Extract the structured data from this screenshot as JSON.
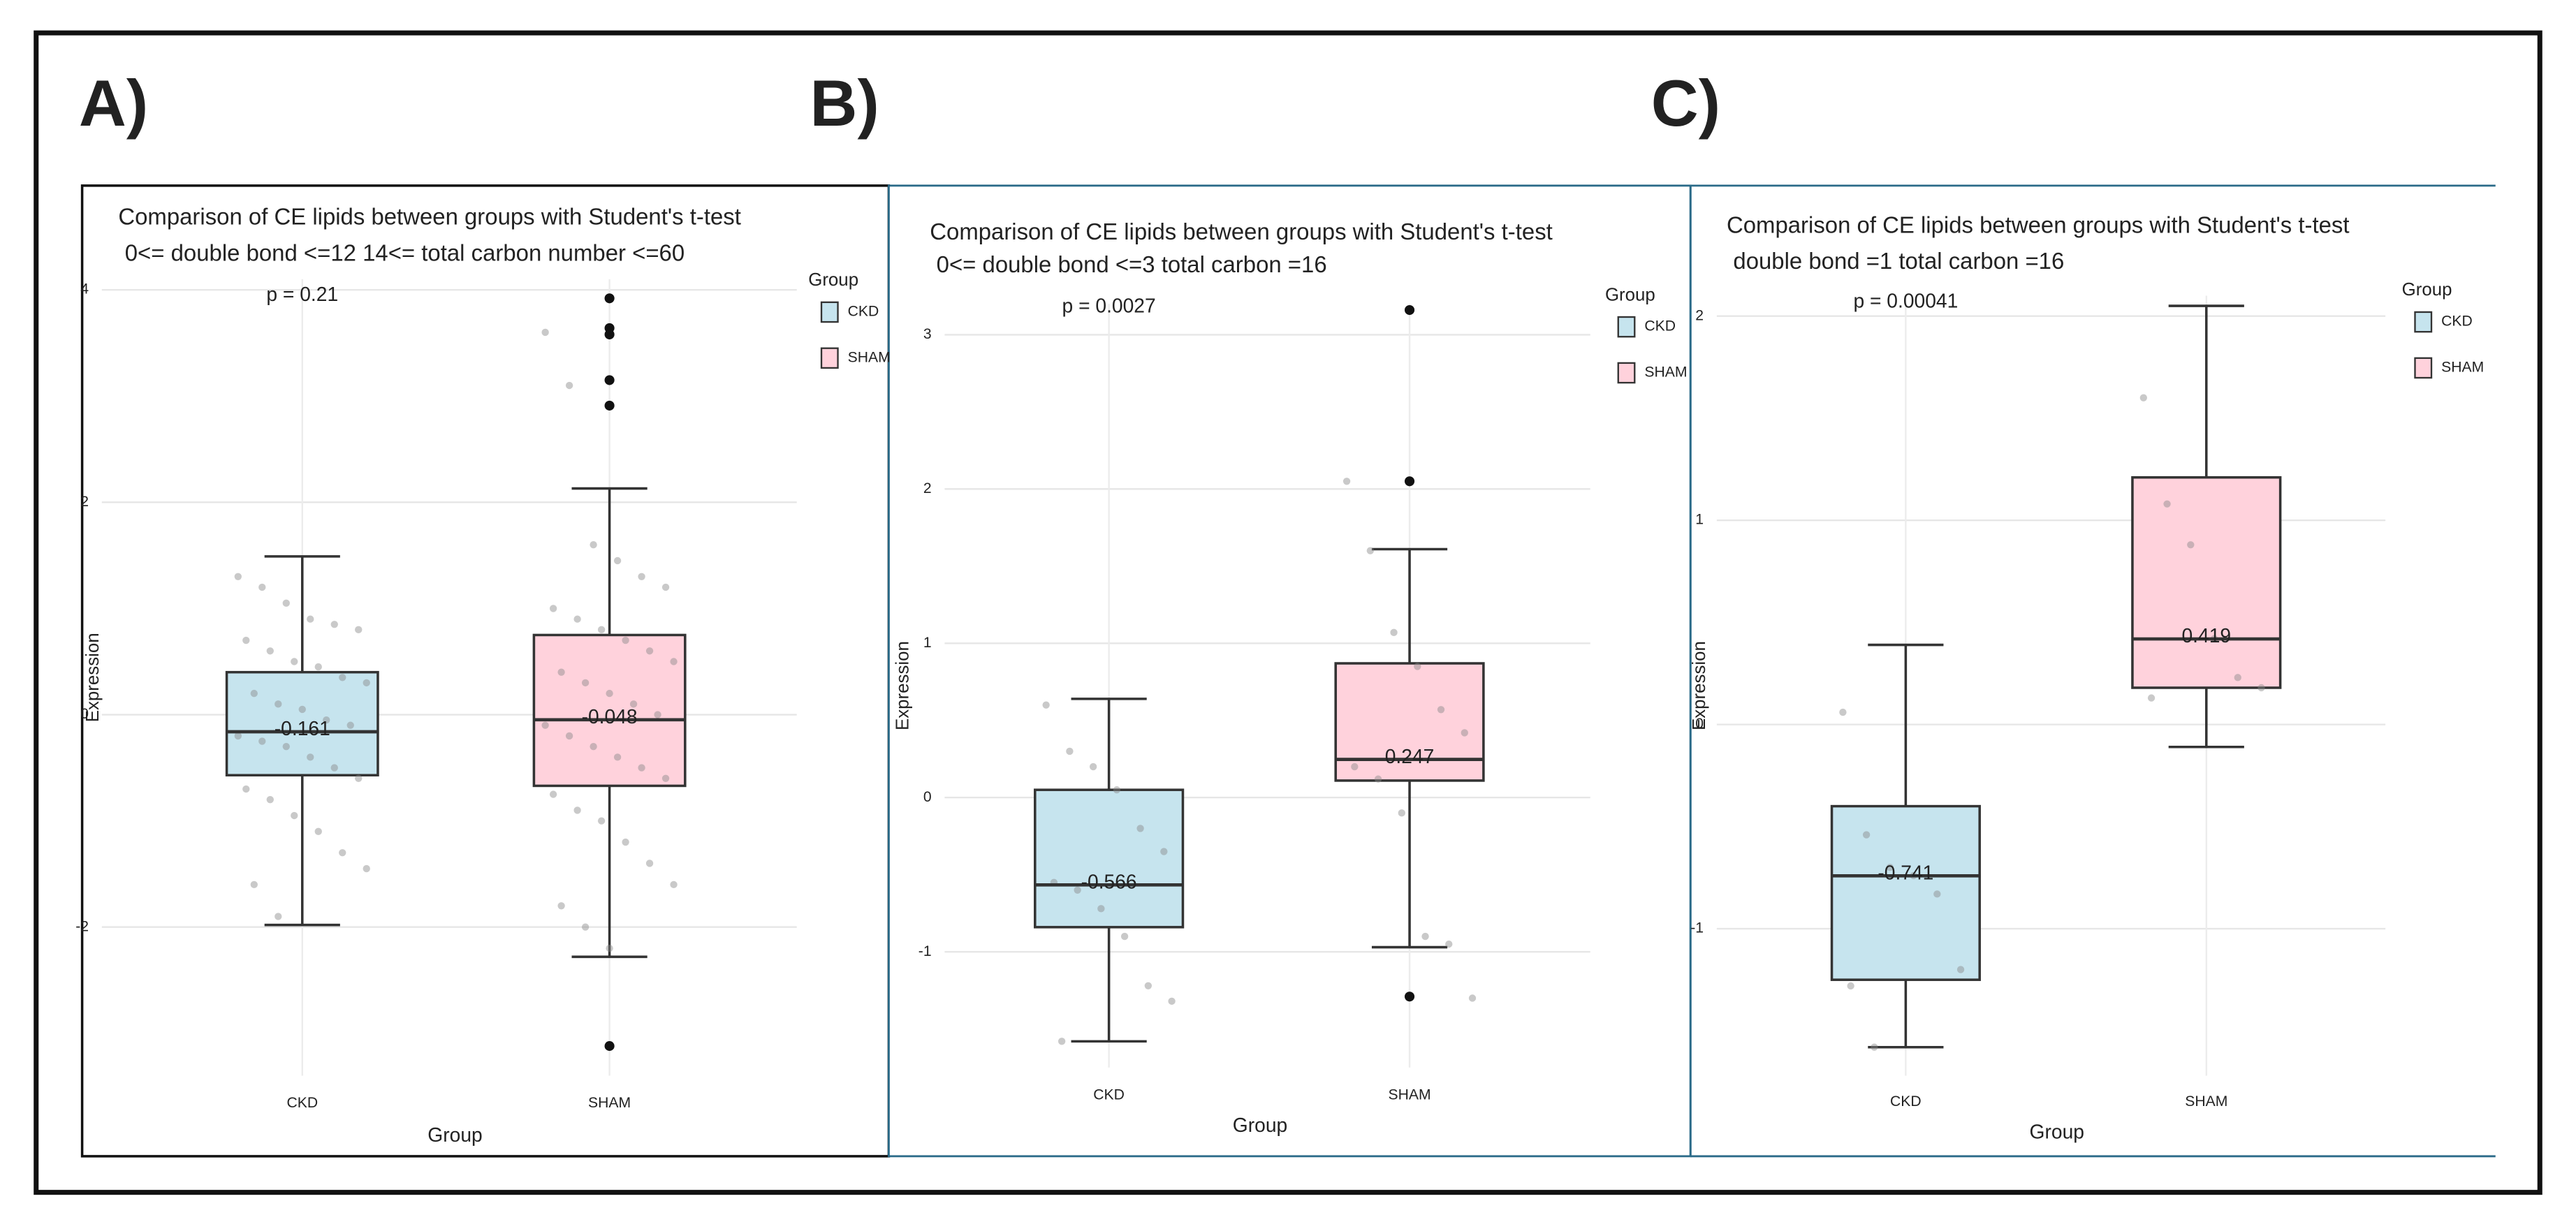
{
  "chart_data": [
    {
      "type": "box",
      "panel_label": "A)",
      "title": "Comparison of CE lipids between groups with Student's t-test",
      "subtitle": "0<= double bond <=12 14<= total carbon number <=60",
      "annotation": "p = 0.21",
      "xlabel": "Group",
      "ylabel": "Expression",
      "legend_title": "Group",
      "categories": [
        "CKD",
        "SHAM"
      ],
      "ylim": [
        -3.4,
        4.1
      ],
      "yticks": [
        -2,
        0,
        2,
        4
      ],
      "grid": true,
      "series": [
        {
          "name": "CKD",
          "color": "#c6e4ee",
          "whisker_low": -1.98,
          "q1": -0.57,
          "median": -0.161,
          "q3": 0.4,
          "whisker_high": 1.49,
          "outliers": [],
          "points": [
            1.3,
            1.2,
            1.05,
            0.9,
            0.85,
            0.8,
            0.7,
            0.6,
            0.5,
            0.45,
            0.35,
            0.3,
            0.2,
            0.1,
            0.05,
            -0.05,
            -0.1,
            -0.2,
            -0.25,
            -0.3,
            -0.4,
            -0.5,
            -0.6,
            -0.7,
            -0.8,
            -0.95,
            -1.1,
            -1.3,
            -1.45,
            -1.6,
            -1.9
          ]
        },
        {
          "name": "SHAM",
          "color": "#ffd2dc",
          "whisker_low": -2.28,
          "q1": -0.67,
          "median": -0.048,
          "q3": 0.75,
          "whisker_high": 2.13,
          "outliers": [
            3.92,
            3.64,
            3.58,
            3.15,
            2.91,
            -3.12
          ],
          "points": [
            3.6,
            3.1,
            1.6,
            1.45,
            1.3,
            1.2,
            1.0,
            0.9,
            0.8,
            0.7,
            0.6,
            0.5,
            0.4,
            0.3,
            0.2,
            0.1,
            0.0,
            -0.1,
            -0.2,
            -0.3,
            -0.4,
            -0.5,
            -0.6,
            -0.75,
            -0.9,
            -1.0,
            -1.2,
            -1.4,
            -1.6,
            -1.8,
            -2.0,
            -2.2
          ]
        }
      ]
    },
    {
      "type": "box",
      "panel_label": "B)",
      "title": "Comparison of CE lipids between groups with Student's t-test",
      "subtitle": "0<= double bond <=3 total carbon =16",
      "annotation": "p = 0.0027",
      "xlabel": "Group",
      "ylabel": "Expression",
      "legend_title": "Group",
      "categories": [
        "CKD",
        "SHAM"
      ],
      "ylim": [
        -1.75,
        3.2
      ],
      "yticks": [
        -1,
        0,
        1,
        2,
        3
      ],
      "grid": true,
      "series": [
        {
          "name": "CKD",
          "color": "#c6e4ee",
          "whisker_low": -1.58,
          "q1": -0.84,
          "median": -0.566,
          "q3": 0.05,
          "whisker_high": 0.64,
          "outliers": [],
          "points": [
            0.6,
            0.3,
            0.2,
            0.05,
            -0.2,
            -0.35,
            -0.55,
            -0.6,
            -0.72,
            -0.9,
            -1.22,
            -1.32,
            -1.58
          ]
        },
        {
          "name": "SHAM",
          "color": "#ffd2dc",
          "whisker_low": -0.97,
          "q1": 0.11,
          "median": 0.247,
          "q3": 0.87,
          "whisker_high": 1.61,
          "outliers": [
            3.16,
            2.05,
            -1.29
          ],
          "points": [
            2.05,
            1.6,
            1.07,
            0.85,
            0.57,
            0.42,
            0.2,
            0.12,
            -0.1,
            -0.9,
            -0.95,
            -1.3
          ]
        }
      ]
    },
    {
      "type": "box",
      "panel_label": "C)",
      "title": "Comparison of CE lipids between groups with Student's t-test",
      "subtitle": "double bond =1 total carbon =16",
      "annotation": "p = 0.00041",
      "xlabel": "Group",
      "ylabel": "Expression",
      "legend_title": "Group",
      "categories": [
        "CKD",
        "SHAM"
      ],
      "ylim": [
        -1.72,
        2.1
      ],
      "yticks": [
        -1,
        0,
        1,
        2
      ],
      "grid": true,
      "series": [
        {
          "name": "CKD",
          "color": "#c6e4ee",
          "whisker_low": -1.58,
          "q1": -1.25,
          "median": -0.741,
          "q3": -0.4,
          "whisker_high": 0.39,
          "outliers": [],
          "points": [
            0.06,
            -0.54,
            -0.7,
            -0.74,
            -0.83,
            -1.2,
            -1.28,
            -1.58
          ]
        },
        {
          "name": "SHAM",
          "color": "#ffd2dc",
          "whisker_low": -0.11,
          "q1": 0.18,
          "median": 0.419,
          "q3": 1.21,
          "whisker_high": 2.05,
          "outliers": [],
          "points": [
            1.6,
            1.08,
            0.88,
            0.42,
            0.23,
            0.18,
            0.13
          ]
        }
      ]
    }
  ]
}
